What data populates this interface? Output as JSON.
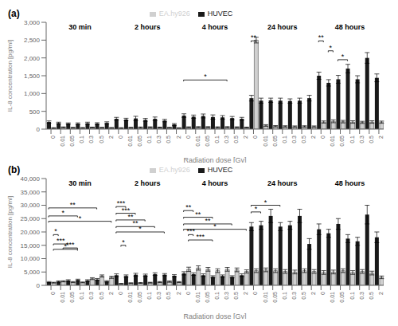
{
  "chart_data": [
    {
      "type": "bar",
      "title": "(a)",
      "x_label": "Radiation dose [Gy]",
      "y_label": "IL-8 concentration [pg/ml]",
      "categories": [
        "0",
        "0.01",
        "0.05",
        "0.1",
        "0.3",
        "0.5",
        "2",
        "0",
        "0.01",
        "0.05",
        "0.1",
        "0.3",
        "0.5",
        "2",
        "0",
        "0.01",
        "0.05",
        "0.1",
        "0.3",
        "0.5",
        "2",
        "0",
        "0.01",
        "0.05",
        "0.1",
        "0.3",
        "0.5",
        "2",
        "0",
        "0.01",
        "0.05",
        "0.1",
        "0.3",
        "0.5",
        "2"
      ],
      "group_labels": [
        "30 min",
        "2 hours",
        "4 hours",
        "24 hours",
        "48 hours"
      ],
      "series": [
        {
          "name": "HUVEC",
          "color": "#1a1a1a",
          "values": [
            200,
            170,
            155,
            150,
            165,
            155,
            175,
            290,
            270,
            300,
            260,
            290,
            240,
            130,
            380,
            350,
            370,
            340,
            330,
            310,
            290,
            870,
            800,
            810,
            800,
            790,
            800,
            870,
            1500,
            1300,
            1400,
            1700,
            1400,
            2000,
            1440
          ],
          "errors": [
            30,
            25,
            20,
            25,
            30,
            25,
            30,
            40,
            35,
            60,
            40,
            50,
            35,
            25,
            50,
            45,
            55,
            60,
            50,
            45,
            40,
            80,
            70,
            60,
            70,
            60,
            70,
            80,
            100,
            90,
            110,
            120,
            100,
            150,
            110
          ]
        },
        {
          "name": "EA.hy926",
          "color": "#d0d0d0",
          "values": [
            30,
            50,
            40,
            35,
            45,
            40,
            35,
            30,
            40,
            45,
            50,
            45,
            40,
            30,
            50,
            55,
            55,
            50,
            55,
            50,
            45,
            2500,
            100,
            80,
            75,
            70,
            75,
            70,
            200,
            220,
            210,
            200,
            190,
            200,
            195
          ],
          "errors": [
            10,
            12,
            10,
            10,
            12,
            10,
            10,
            10,
            12,
            15,
            15,
            12,
            10,
            8,
            15,
            15,
            15,
            15,
            15,
            15,
            12,
            80,
            25,
            20,
            20,
            20,
            20,
            20,
            30,
            40,
            35,
            35,
            30,
            35,
            30
          ]
        }
      ],
      "ylim": [
        0,
        3000
      ],
      "yticks": [
        0,
        500,
        {
          "value": 1000,
          "label": "1,000"
        },
        {
          "value": 1500,
          "label": "1,500"
        },
        {
          "value": 2000,
          "label": "2,000"
        },
        {
          "value": 2500,
          "label": "2,500"
        },
        {
          "value": 3000,
          "label": "3,000"
        }
      ],
      "grid": false,
      "legend": "top",
      "brackets": [
        {
          "text": "*",
          "y": 1380,
          "from": [
            14,
            0
          ],
          "to": [
            18,
            1
          ]
        },
        {
          "text": "**",
          "y": 2480,
          "from": [
            21,
            0
          ],
          "to": [
            21,
            1
          ]
        },
        {
          "text": "**",
          "y": 2480,
          "from": [
            28,
            0
          ],
          "to": [
            28,
            1
          ]
        },
        {
          "text": "*",
          "y": 2200,
          "from": [
            29,
            0
          ],
          "to": [
            29,
            1
          ]
        },
        {
          "text": "*",
          "y": 1950,
          "from": [
            30,
            0
          ],
          "to": [
            31,
            0
          ]
        }
      ]
    },
    {
      "type": "bar",
      "title": "(b)",
      "x_label": "Radiation dose [Gy]",
      "y_label": "IL-8 concentration [pg/ml]",
      "categories": [
        "0",
        "0.01",
        "0.05",
        "0.1",
        "0.3",
        "0.5",
        "2",
        "0",
        "0.01",
        "0.05",
        "0.1",
        "0.3",
        "0.5",
        "2",
        "0",
        "0.01",
        "0.05",
        "0.1",
        "0.3",
        "0.5",
        "2",
        "0",
        "0.01",
        "0.05",
        "0.1",
        "0.3",
        "0.5",
        "2",
        "0",
        "0.01",
        "0.05",
        "0.1",
        "0.3",
        "0.5",
        "2"
      ],
      "group_labels": [
        "30 min",
        "2 hours",
        "4 hours",
        "24 hours",
        "48 hours"
      ],
      "series": [
        {
          "name": "HUVEC",
          "color": "#1a1a1a",
          "values": [
            1200,
            1400,
            1800,
            2000,
            1800,
            2200,
            1500,
            3800,
            3500,
            4000,
            3800,
            4200,
            4000,
            3600,
            4500,
            4200,
            3800,
            3200,
            3500,
            3200,
            3800,
            22000,
            22500,
            26000,
            22000,
            22500,
            26000,
            15500,
            21000,
            19500,
            23000,
            17500,
            16500,
            26500,
            18000
          ],
          "errors": [
            200,
            250,
            300,
            300,
            300,
            350,
            250,
            500,
            400,
            500,
            400,
            500,
            400,
            400,
            600,
            500,
            500,
            400,
            400,
            400,
            500,
            1500,
            1500,
            2500,
            1500,
            1500,
            2500,
            2000,
            2000,
            1500,
            2000,
            1500,
            1500,
            3500,
            2000
          ]
        },
        {
          "name": "EA.hy926",
          "color": "#d0d0d0",
          "values": [
            1000,
            1500,
            1200,
            1100,
            2500,
            3500,
            3000,
            600,
            800,
            900,
            1000,
            1200,
            1400,
            1200,
            6000,
            6500,
            6000,
            5500,
            6000,
            5800,
            5200,
            5500,
            5800,
            5500,
            5200,
            5000,
            5500,
            5200,
            4800,
            5000,
            5500,
            4800,
            5200,
            4600,
            3000
          ],
          "errors": [
            150,
            200,
            200,
            150,
            350,
            400,
            400,
            100,
            150,
            150,
            150,
            200,
            250,
            200,
            800,
            800,
            700,
            700,
            700,
            700,
            600,
            700,
            700,
            700,
            700,
            700,
            700,
            700,
            700,
            700,
            700,
            700,
            700,
            700,
            500
          ]
        }
      ],
      "ylim": [
        0,
        40000
      ],
      "yticks": [
        0,
        {
          "value": 5000,
          "label": "5,000"
        },
        {
          "value": 10000,
          "label": "10,000"
        },
        {
          "value": 15000,
          "label": "15,000"
        },
        {
          "value": 20000,
          "label": "20,000"
        },
        {
          "value": 25000,
          "label": "25,000"
        },
        {
          "value": 30000,
          "label": "30,000"
        },
        {
          "value": 35000,
          "label": "35,000"
        },
        {
          "value": 40000,
          "label": "40,000"
        }
      ],
      "grid": false,
      "legend": "top",
      "brackets": [
        {
          "text": "**",
          "y": 29000,
          "from": [
            0,
            0
          ],
          "to": [
            5,
            0
          ]
        },
        {
          "text": "*",
          "y": 26000,
          "from": [
            0,
            0
          ],
          "to": [
            3,
            0
          ]
        },
        {
          "text": "*",
          "y": 24000,
          "from": [
            0,
            0
          ],
          "to": [
            6,
            1
          ]
        },
        {
          "text": "*",
          "y": 19000,
          "from": [
            0,
            1
          ],
          "to": [
            1,
            0
          ]
        },
        {
          "text": "***",
          "y": 15500,
          "from": [
            0,
            1
          ],
          "to": [
            2,
            0
          ]
        },
        {
          "text": "*",
          "y": 13500,
          "from": [
            0,
            1
          ],
          "to": [
            3,
            0
          ]
        },
        {
          "text": "***",
          "y": 14000,
          "from": [
            1,
            1
          ],
          "to": [
            3,
            0
          ]
        },
        {
          "text": "***",
          "y": 29500,
          "from": [
            7,
            0
          ],
          "to": [
            8,
            0
          ]
        },
        {
          "text": "***",
          "y": 27000,
          "from": [
            7,
            0
          ],
          "to": [
            9,
            0
          ]
        },
        {
          "text": "**",
          "y": 24500,
          "from": [
            7,
            0
          ],
          "to": [
            10,
            0
          ]
        },
        {
          "text": "**",
          "y": 22000,
          "from": [
            7,
            0
          ],
          "to": [
            11,
            0
          ]
        },
        {
          "text": "*",
          "y": 20000,
          "from": [
            7,
            0
          ],
          "to": [
            12,
            0
          ]
        },
        {
          "text": "*",
          "y": 15000,
          "from": [
            7,
            1
          ],
          "to": [
            8,
            0
          ]
        },
        {
          "text": "**",
          "y": 28000,
          "from": [
            14,
            0
          ],
          "to": [
            15,
            0
          ]
        },
        {
          "text": "**",
          "y": 25500,
          "from": [
            14,
            0
          ],
          "to": [
            17,
            0
          ]
        },
        {
          "text": "**",
          "y": 23000,
          "from": [
            14,
            0
          ],
          "to": [
            19,
            0
          ]
        },
        {
          "text": "*",
          "y": 21000,
          "from": [
            14,
            0
          ],
          "to": [
            20,
            1
          ]
        },
        {
          "text": "***",
          "y": 19000,
          "from": [
            14,
            1
          ],
          "to": [
            15,
            0
          ]
        },
        {
          "text": "***",
          "y": 17000,
          "from": [
            14,
            1
          ],
          "to": [
            17,
            0
          ]
        },
        {
          "text": "*",
          "y": 30000,
          "from": [
            21,
            0
          ],
          "to": [
            24,
            0
          ]
        },
        {
          "text": "*",
          "y": 27500,
          "from": [
            21,
            0
          ],
          "to": [
            22,
            0
          ]
        }
      ]
    }
  ]
}
